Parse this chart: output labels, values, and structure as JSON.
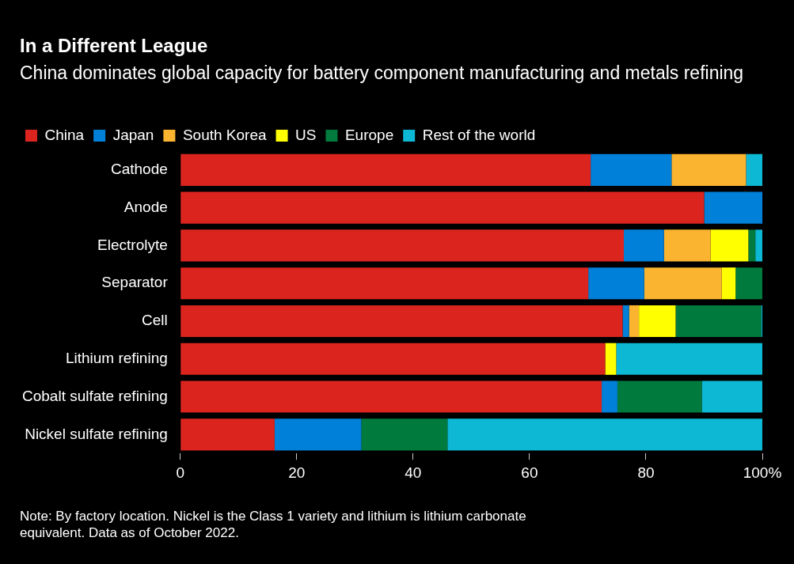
{
  "chart_data": {
    "type": "bar",
    "orientation": "horizontal",
    "stacked": true,
    "title": "In a Different League",
    "subtitle": "China dominates global capacity for battery component manufacturing and metals refining",
    "categories": [
      "Cathode",
      "Anode",
      "Electrolyte",
      "Separator",
      "Cell",
      "Lithium refining",
      "Cobalt sulfate refining",
      "Nickel sulfate refining"
    ],
    "series": [
      {
        "name": "China",
        "color": "#dc241f",
        "values": [
          70.5,
          90,
          76.2,
          70.1,
          76.0,
          73.0,
          72.4,
          16.2
        ]
      },
      {
        "name": "Japan",
        "color": "#0080d8",
        "values": [
          13.9,
          10,
          6.9,
          9.6,
          1.1,
          0,
          2.7,
          14.9
        ]
      },
      {
        "name": "South Korea",
        "color": "#fbb430",
        "values": [
          12.8,
          0,
          8.0,
          13.3,
          1.7,
          0,
          0,
          0
        ]
      },
      {
        "name": "US",
        "color": "#ffff00",
        "values": [
          0,
          0,
          6.5,
          2.4,
          6.3,
          1.9,
          0,
          0
        ]
      },
      {
        "name": "Europe",
        "color": "#007a3d",
        "values": [
          0,
          0,
          1.2,
          4.6,
          14.7,
          0,
          14.5,
          14.8
        ]
      },
      {
        "name": "Rest of the world",
        "color": "#0cb8d4",
        "values": [
          2.8,
          0,
          1.2,
          0,
          0.2,
          25.1,
          10.4,
          54.1
        ]
      }
    ],
    "xlim": [
      0,
      100
    ],
    "xticks": [
      0,
      20,
      40,
      60,
      80,
      {
        "value": 100,
        "label": "100%"
      }
    ],
    "grid": false,
    "legend": "top left",
    "annotations": [
      "Note: By factory location. Nickel is the Class 1 variety and lithium is lithium carbonate equivalent. Data as of October 2022."
    ]
  }
}
